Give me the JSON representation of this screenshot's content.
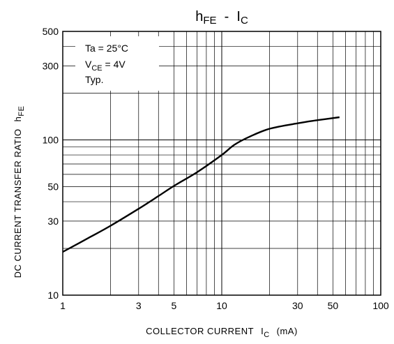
{
  "chart_data": {
    "type": "line",
    "title": {
      "main": "h",
      "main_sub": "FE",
      "sep": "  -  ",
      "right": "I",
      "right_sub": "C"
    },
    "xlabel": {
      "text": "COLLECTOR CURRENT",
      "sym": "I",
      "sym_sub": "C",
      "unit": "(mA)"
    },
    "ylabel": {
      "text": "DC CURRENT TRANSFER RATIO",
      "sym": "h",
      "sym_sub": "FE"
    },
    "xscale": "log",
    "yscale": "log",
    "xlim": [
      1,
      100
    ],
    "ylim": [
      10,
      500
    ],
    "grid": true,
    "x_ticks": [
      {
        "v": 1,
        "label": "1"
      },
      {
        "v": 3,
        "label": "3"
      },
      {
        "v": 5,
        "label": "5"
      },
      {
        "v": 10,
        "label": "10"
      },
      {
        "v": 30,
        "label": "30"
      },
      {
        "v": 50,
        "label": "50"
      },
      {
        "v": 100,
        "label": "100"
      }
    ],
    "y_ticks": [
      {
        "v": 10,
        "label": "10"
      },
      {
        "v": 30,
        "label": "30"
      },
      {
        "v": 50,
        "label": "50"
      },
      {
        "v": 100,
        "label": "100"
      },
      {
        "v": 300,
        "label": "300"
      },
      {
        "v": 500,
        "label": "500"
      }
    ],
    "annotations": {
      "ta": "Ta = 25°C",
      "vce_pre": "V",
      "vce_sub": "CE",
      "vce_post": " = 4V",
      "typ": "Typ."
    },
    "series": [
      {
        "x": [
          1,
          1.5,
          2,
          3,
          4,
          5,
          7,
          10,
          12,
          15,
          20,
          30,
          40,
          55
        ],
        "y": [
          19,
          23.8,
          28,
          36,
          43.5,
          50.5,
          62,
          80,
          93,
          105,
          118,
          128,
          134,
          140
        ]
      }
    ]
  }
}
